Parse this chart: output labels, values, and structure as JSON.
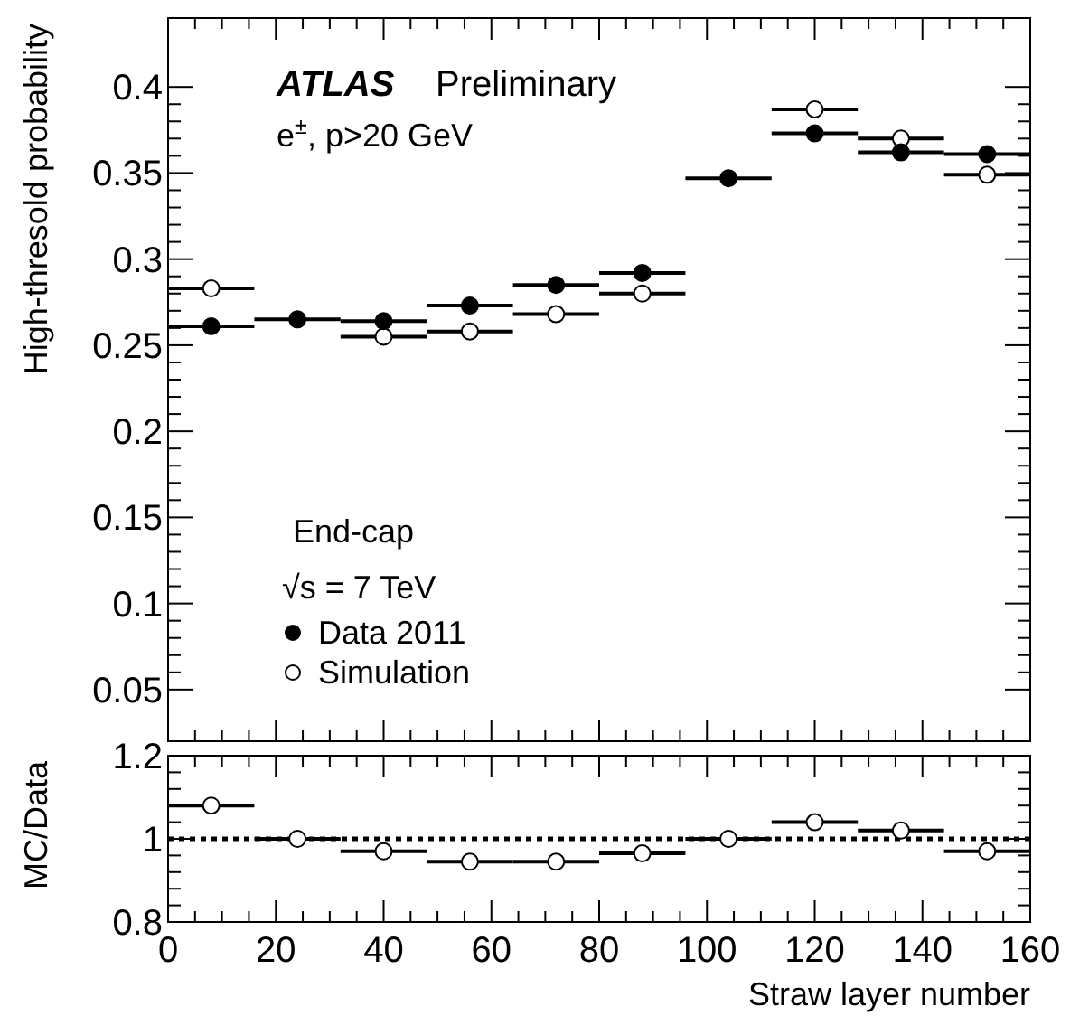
{
  "chart_data": [
    {
      "type": "scatter",
      "ylabel": "High-thresold probability",
      "legend_title": "End-cap",
      "legend": "bottom left",
      "marker": "circle",
      "tick_labels": "y",
      "annotations": [
        "ATLAS",
        "Preliminary",
        "e$^{±}$, p>20 GeV",
        "√s = 7 TeV"
      ],
      "x": [
        8,
        24,
        40,
        56,
        72,
        88,
        104,
        120,
        136,
        152
      ],
      "xlim": [
        0,
        160
      ],
      "xticks": [
        0,
        20,
        40,
        60,
        80,
        100,
        120,
        140,
        160
      ],
      "ylim": [
        0.02,
        0.44
      ],
      "yticks": [
        0.05,
        0.1,
        0.15,
        0.2,
        0.25,
        0.3,
        0.35,
        0.4
      ],
      "series": [
        {
          "name": "Data 2011",
          "color": "#000000",
          "values": [
            0.261,
            0.265,
            0.264,
            0.273,
            0.285,
            0.292,
            0.347,
            0.373,
            0.362,
            0.361
          ],
          "xerrors": [
            8,
            8,
            8,
            8,
            8,
            8,
            8,
            8,
            8,
            8
          ]
        },
        {
          "name": "Simulation",
          "color": "#ffffff",
          "values": [
            0.283,
            null,
            0.255,
            0.258,
            0.268,
            0.28,
            null,
            0.387,
            0.37,
            0.349
          ],
          "xerrors": [
            8,
            null,
            8,
            8,
            8,
            8,
            null,
            8,
            8,
            8
          ]
        }
      ]
    },
    {
      "type": "scatter",
      "ylabel": "MC/Data",
      "xlabel": "Straw layer number",
      "marker": "circle",
      "x": [
        8,
        24,
        40,
        56,
        72,
        88,
        104,
        120,
        136,
        152
      ],
      "xlim": [
        0,
        160
      ],
      "xticks": [
        0,
        20,
        40,
        60,
        80,
        100,
        120,
        140,
        160
      ],
      "ylim": [
        0.8,
        1.2
      ],
      "yticks": [
        0.8,
        1,
        1.2
      ],
      "ref_lines": [
        {
          "axis": "y",
          "value": 1,
          "line_style": "dotted",
          "color": "#000000"
        }
      ],
      "series": [
        {
          "color": "#ffffff",
          "values": [
            1.08,
            1.0,
            0.97,
            0.945,
            0.945,
            0.965,
            1.0,
            1.04,
            1.02,
            0.97
          ],
          "xerrors": [
            8,
            8,
            8,
            8,
            8,
            8,
            8,
            8,
            8,
            8
          ]
        }
      ]
    }
  ]
}
